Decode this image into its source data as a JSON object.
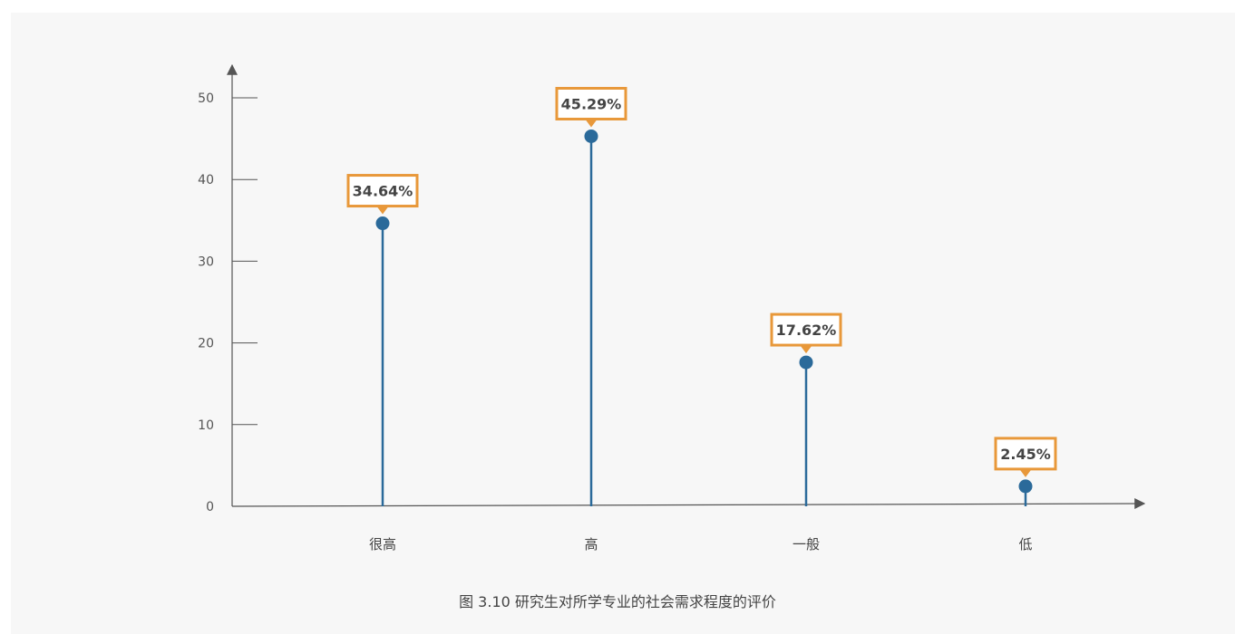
{
  "caption": "图 3.10 研究生对所学专业的社会需求程度的评价",
  "chart_data": {
    "type": "lollipop",
    "categories": [
      "很高",
      "高",
      "一般",
      "低"
    ],
    "values": [
      34.64,
      45.29,
      17.62,
      2.45
    ],
    "value_labels": [
      "34.64%",
      "45.29%",
      "17.62%",
      "2.45%"
    ],
    "ylim": [
      0,
      50
    ],
    "yticks": [
      "0",
      "10",
      "20",
      "30",
      "40",
      "50"
    ],
    "title": "",
    "xlabel": "",
    "ylabel": "",
    "colors": {
      "stem": "#2b6a9a",
      "marker": "#2b6a9a",
      "label_border": "#e8983a",
      "label_text": "#444444",
      "axis": "#555555"
    }
  }
}
